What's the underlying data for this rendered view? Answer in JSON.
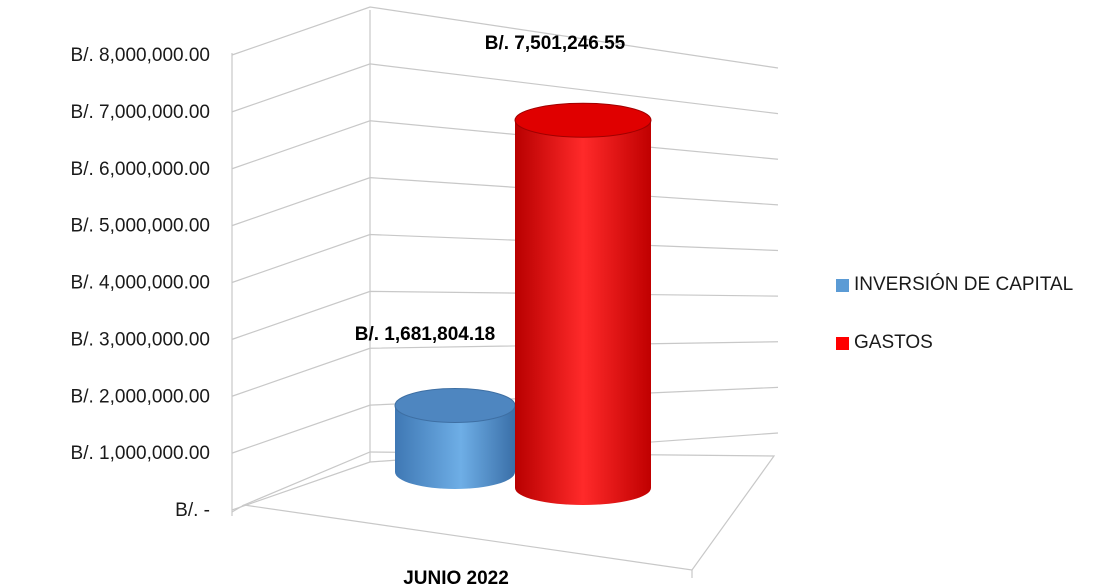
{
  "chart_data": {
    "type": "bar",
    "style": "3d-cylinder",
    "categories": [
      "JUNIO 2022"
    ],
    "series": [
      {
        "name": "INVERSIÓN DE CAPITAL",
        "values": [
          1681804.18
        ],
        "color": "#5b9bd5",
        "label": "B/. 1,681,804.18"
      },
      {
        "name": "GASTOS",
        "values": [
          7501246.55
        ],
        "color": "#ff0000",
        "label": "B/. 7,501,246.55"
      }
    ],
    "ylim": [
      0,
      8000000
    ],
    "yticks": [
      0,
      1000000,
      2000000,
      3000000,
      4000000,
      5000000,
      6000000,
      7000000,
      8000000
    ],
    "ytick_labels": [
      "B/. -",
      "B/. 1,000,000.00",
      "B/. 2,000,000.00",
      "B/. 3,000,000.00",
      "B/. 4,000,000.00",
      "B/. 5,000,000.00",
      "B/. 6,000,000.00",
      "B/. 7,000,000.00",
      "B/. 8,000,000.00"
    ],
    "grid": true,
    "legend_position": "right"
  }
}
